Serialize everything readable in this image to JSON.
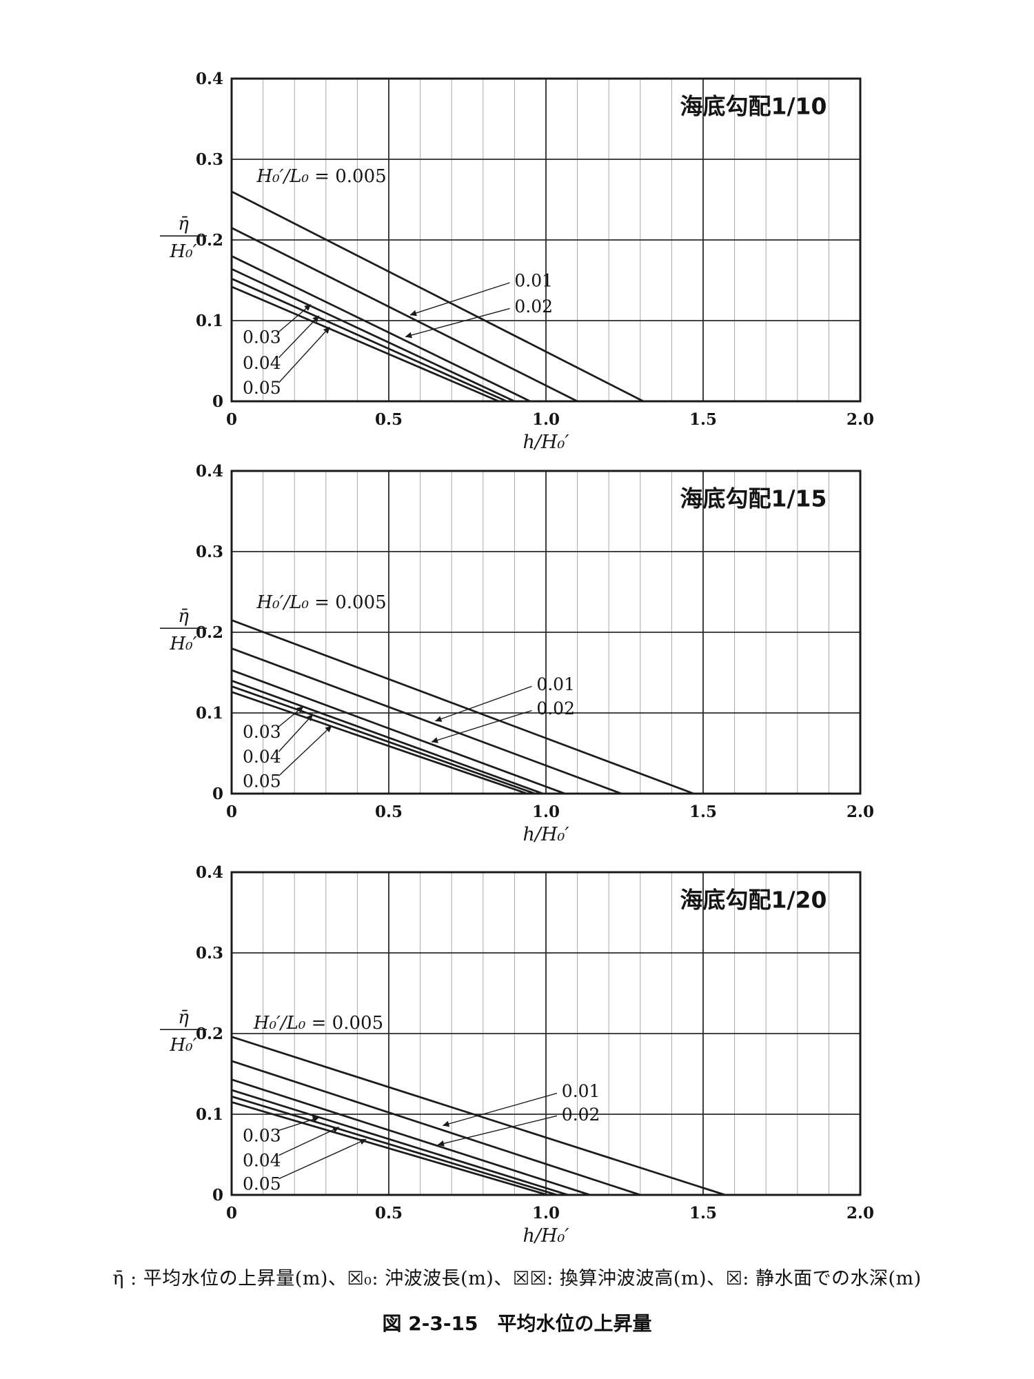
{
  "figure": {
    "legend": "η̄ : 平均水位の上昇量(m)、☒₀: 沖波波長(m)、☒☒: 換算沖波波高(m)、☒: 静水面での水深(m)",
    "caption": "図 2-3-15　平均水位の上昇量"
  },
  "axes": {
    "xlabel": "h/H₀′",
    "ylabel_numerator": "η̄",
    "ylabel_denominator": "H₀′",
    "xlim": [
      0,
      2.0
    ],
    "ylim": [
      0,
      0.4
    ],
    "x_minor_step": 0.1,
    "xticks": [
      {
        "v": 0,
        "label": "0"
      },
      {
        "v": 0.5,
        "label": "0.5"
      },
      {
        "v": 1.0,
        "label": "1.0"
      },
      {
        "v": 1.5,
        "label": "1.5"
      },
      {
        "v": 2.0,
        "label": "2.0"
      }
    ],
    "yticks": [
      {
        "v": 0,
        "label": "0"
      },
      {
        "v": 0.1,
        "label": "0.1"
      },
      {
        "v": 0.2,
        "label": "0.2"
      },
      {
        "v": 0.3,
        "label": "0.3"
      },
      {
        "v": 0.4,
        "label": "0.4"
      }
    ],
    "x_majors": [
      0.5,
      1.0,
      1.5
    ],
    "y_majors": [
      0.1,
      0.2,
      0.3
    ]
  },
  "eq_label": {
    "math": "H₀′/L₀",
    "rest": " = 0.005"
  },
  "chart_data": [
    {
      "type": "line",
      "title": "海底勾配1/10",
      "xlabel": "h/H₀′",
      "ylabel": "η̄/H₀′",
      "xlim": [
        0,
        2.0
      ],
      "ylim": [
        0,
        0.4
      ],
      "title_pos": [
        1.66,
        0.356
      ],
      "eq_pos": [
        0.08,
        0.272
      ],
      "series": [
        {
          "name": "0.005",
          "points": [
            [
              0,
              0.26
            ],
            [
              1.31,
              0
            ]
          ]
        },
        {
          "name": "0.01",
          "points": [
            [
              0,
              0.215
            ],
            [
              1.1,
              0
            ]
          ]
        },
        {
          "name": "0.02",
          "points": [
            [
              0,
              0.18
            ],
            [
              0.95,
              0
            ]
          ]
        },
        {
          "name": "0.03",
          "points": [
            [
              0,
              0.164
            ],
            [
              0.9,
              0
            ]
          ]
        },
        {
          "name": "0.04",
          "points": [
            [
              0,
              0.152
            ],
            [
              0.875,
              0
            ]
          ]
        },
        {
          "name": "0.05",
          "points": [
            [
              0,
              0.142
            ],
            [
              0.85,
              0
            ]
          ]
        }
      ],
      "annotations": [
        {
          "text": "0.01",
          "text_pos": [
            0.9,
            0.15
          ],
          "arrow_from": [
            0.885,
            0.147
          ],
          "arrow_to": [
            0.568,
            0.107
          ]
        },
        {
          "text": "0.02",
          "text_pos": [
            0.9,
            0.118
          ],
          "arrow_from": [
            0.885,
            0.115
          ],
          "arrow_to": [
            0.553,
            0.08
          ]
        },
        {
          "text": "0.03",
          "text_pos": [
            0.035,
            0.08
          ],
          "arrow_from": [
            0.15,
            0.086
          ],
          "arrow_to": [
            0.252,
            0.12
          ]
        },
        {
          "text": "0.04",
          "text_pos": [
            0.035,
            0.048
          ],
          "arrow_from": [
            0.15,
            0.054
          ],
          "arrow_to": [
            0.278,
            0.106
          ]
        },
        {
          "text": "0.05",
          "text_pos": [
            0.035,
            0.017
          ],
          "arrow_from": [
            0.15,
            0.023
          ],
          "arrow_to": [
            0.312,
            0.092
          ]
        }
      ]
    },
    {
      "type": "line",
      "title": "海底勾配1/15",
      "xlabel": "h/H₀′",
      "ylabel": "η̄/H₀′",
      "xlim": [
        0,
        2.0
      ],
      "ylim": [
        0,
        0.4
      ],
      "title_pos": [
        1.66,
        0.356
      ],
      "eq_pos": [
        0.08,
        0.23
      ],
      "series": [
        {
          "name": "0.005",
          "points": [
            [
              0,
              0.215
            ],
            [
              1.47,
              0
            ]
          ]
        },
        {
          "name": "0.01",
          "points": [
            [
              0,
              0.18
            ],
            [
              1.24,
              0
            ]
          ]
        },
        {
          "name": "0.02",
          "points": [
            [
              0,
              0.153
            ],
            [
              1.06,
              0
            ]
          ]
        },
        {
          "name": "0.03",
          "points": [
            [
              0,
              0.14
            ],
            [
              0.99,
              0
            ]
          ]
        },
        {
          "name": "0.04",
          "points": [
            [
              0,
              0.133
            ],
            [
              0.965,
              0
            ]
          ]
        },
        {
          "name": "0.05",
          "points": [
            [
              0,
              0.126
            ],
            [
              0.94,
              0
            ]
          ]
        }
      ],
      "annotations": [
        {
          "text": "0.01",
          "text_pos": [
            0.97,
            0.136
          ],
          "arrow_from": [
            0.955,
            0.133
          ],
          "arrow_to": [
            0.648,
            0.09
          ]
        },
        {
          "text": "0.02",
          "text_pos": [
            0.97,
            0.106
          ],
          "arrow_from": [
            0.955,
            0.103
          ],
          "arrow_to": [
            0.636,
            0.064
          ]
        },
        {
          "text": "0.03",
          "text_pos": [
            0.035,
            0.077
          ],
          "arrow_from": [
            0.15,
            0.083
          ],
          "arrow_to": [
            0.228,
            0.108
          ]
        },
        {
          "text": "0.04",
          "text_pos": [
            0.035,
            0.046
          ],
          "arrow_from": [
            0.15,
            0.052
          ],
          "arrow_to": [
            0.258,
            0.098
          ]
        },
        {
          "text": "0.05",
          "text_pos": [
            0.035,
            0.016
          ],
          "arrow_from": [
            0.15,
            0.022
          ],
          "arrow_to": [
            0.318,
            0.084
          ]
        }
      ]
    },
    {
      "type": "line",
      "title": "海底勾配1/20",
      "xlabel": "h/H₀′",
      "ylabel": "η̄/H₀′",
      "xlim": [
        0,
        2.0
      ],
      "ylim": [
        0,
        0.4
      ],
      "title_pos": [
        1.66,
        0.356
      ],
      "eq_pos": [
        0.07,
        0.206
      ],
      "series": [
        {
          "name": "0.005",
          "points": [
            [
              0,
              0.196
            ],
            [
              1.57,
              0
            ]
          ]
        },
        {
          "name": "0.01",
          "points": [
            [
              0,
              0.166
            ],
            [
              1.3,
              0
            ]
          ]
        },
        {
          "name": "0.02",
          "points": [
            [
              0,
              0.143
            ],
            [
              1.14,
              0
            ]
          ]
        },
        {
          "name": "0.03",
          "points": [
            [
              0,
              0.13
            ],
            [
              1.07,
              0
            ]
          ]
        },
        {
          "name": "0.04",
          "points": [
            [
              0,
              0.122
            ],
            [
              1.035,
              0
            ]
          ]
        },
        {
          "name": "0.05",
          "points": [
            [
              0,
              0.115
            ],
            [
              1.005,
              0
            ]
          ]
        }
      ],
      "annotations": [
        {
          "text": "0.01",
          "text_pos": [
            1.05,
            0.129
          ],
          "arrow_from": [
            1.035,
            0.126
          ],
          "arrow_to": [
            0.672,
            0.086
          ]
        },
        {
          "text": "0.02",
          "text_pos": [
            1.05,
            0.1
          ],
          "arrow_from": [
            1.035,
            0.098
          ],
          "arrow_to": [
            0.656,
            0.062
          ]
        },
        {
          "text": "0.03",
          "text_pos": [
            0.035,
            0.074
          ],
          "arrow_from": [
            0.15,
            0.08
          ],
          "arrow_to": [
            0.278,
            0.096
          ]
        },
        {
          "text": "0.04",
          "text_pos": [
            0.035,
            0.043
          ],
          "arrow_from": [
            0.15,
            0.049
          ],
          "arrow_to": [
            0.342,
            0.084
          ]
        },
        {
          "text": "0.05",
          "text_pos": [
            0.035,
            0.014
          ],
          "arrow_from": [
            0.15,
            0.02
          ],
          "arrow_to": [
            0.428,
            0.069
          ]
        }
      ]
    }
  ],
  "style": {
    "frame_color": "#1a1a1a",
    "minor_grid_color": "#a8a8a8",
    "major_grid_color": "#2a2a2a",
    "series_color": "#1c1c1c",
    "arrow_color": "#1a1a1a"
  }
}
